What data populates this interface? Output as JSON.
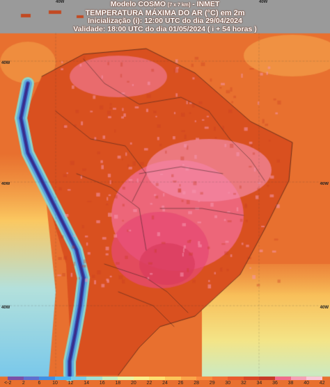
{
  "header": {
    "line1": "Modelo COSMO",
    "line1_res": "[7 x 7 km]",
    "line1_src": "- INMET",
    "line2": "TEMPERATURA MÁXIMA DO AR (°C) em 2m",
    "line3": "Inicialização (i): 12:00 UTC do dia 29/04/2024",
    "line4": "Validade: 18:00 UTC do dia 01/05/2024 ( i + 54 horas )"
  },
  "graticule": {
    "lon_labels": [
      "40W",
      "40W"
    ],
    "lat_labels_left": [
      "40W",
      "40W",
      "40W"
    ],
    "lat_labels_right": [
      "40W",
      "40W"
    ]
  },
  "colorbar": {
    "ticks": [
      "<-2",
      "2",
      "6",
      "10",
      "12",
      "14",
      "16",
      "18",
      "20",
      "22",
      "24",
      "26",
      "28",
      "29",
      "30",
      "32",
      "34",
      "36",
      "38",
      "40",
      "42"
    ],
    "colors": [
      "#7a4fa8",
      "#5e6fd0",
      "#3f8fe6",
      "#4fb4f0",
      "#77cde8",
      "#9fe0d4",
      "#c6eec0",
      "#e9f5a6",
      "#fbf08a",
      "#fde070",
      "#fcc65a",
      "#fba64a",
      "#f98a3e",
      "#f47034",
      "#ea5a2c",
      "#d94424",
      "#c63a28",
      "#f26b8c",
      "#f7a0b8",
      "#fbc6d8"
    ]
  }
}
